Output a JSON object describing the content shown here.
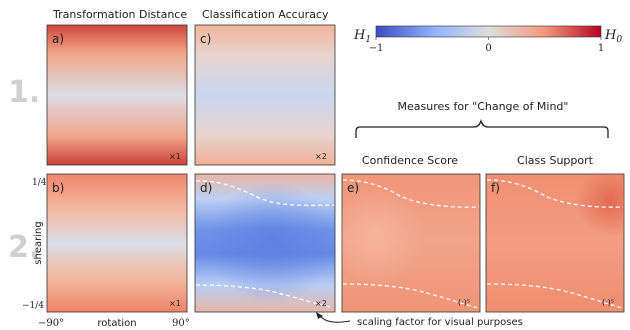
{
  "columns": {
    "transformation_distance": "Transformation Distance",
    "classification_accuracy": "Classification Accuracy",
    "confidence_score": "Confidence Score",
    "class_support": "Class Support"
  },
  "measures_title": "Measures for \"Change of Mind\"",
  "row_labels": {
    "row1": "1.",
    "row2": "2."
  },
  "panels": [
    {
      "id": "a",
      "label": "a)",
      "scale": "×1"
    },
    {
      "id": "c",
      "label": "c)",
      "scale": "×2"
    },
    {
      "id": "b",
      "label": "b)",
      "scale": "×1"
    },
    {
      "id": "d",
      "label": "d)",
      "scale": "×2"
    },
    {
      "id": "e",
      "label": "e)",
      "scale": "(·)⁵"
    },
    {
      "id": "f",
      "label": "f)",
      "scale": "(·)⁵"
    }
  ],
  "colorbar": {
    "left_label": "H",
    "left_sub": "1",
    "right_label": "H",
    "right_sub": "0",
    "ticks": [
      "−1",
      "0",
      "1"
    ],
    "colors": [
      "#3a4cc0",
      "#dddddd",
      "#b40426"
    ]
  },
  "axes": {
    "ylabel": "shearing",
    "xlabel": "rotation",
    "y_top": "1/4",
    "y_bottom": "−1/4",
    "x_left": "−90°",
    "x_right": "90°"
  },
  "annotation": "scaling factor for visual purposes"
}
